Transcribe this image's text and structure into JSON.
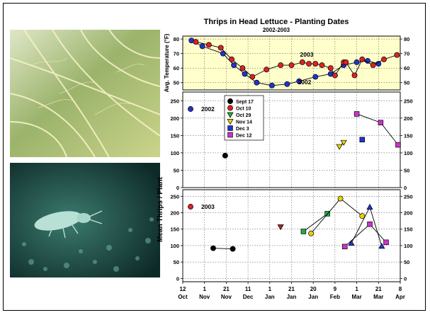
{
  "chart_data": {
    "type": "line",
    "title": "Thrips in Head Lettuce - Planting Dates",
    "subtitle": "2002-2003",
    "x_ticks": [
      {
        "day": "12",
        "month": "Oct",
        "pos": 0
      },
      {
        "day": "1",
        "month": "Nov",
        "pos": 20
      },
      {
        "day": "21",
        "month": "Nov",
        "pos": 40
      },
      {
        "day": "11",
        "month": "Dec",
        "pos": 60
      },
      {
        "day": "1",
        "month": "Jan",
        "pos": 80
      },
      {
        "day": "21",
        "month": "Jan",
        "pos": 100
      },
      {
        "day": "20",
        "month": "Jan",
        "pos": 120
      },
      {
        "day": "9",
        "month": "Feb",
        "pos": 140
      },
      {
        "day": "1",
        "month": "Mar",
        "pos": 160
      },
      {
        "day": "21",
        "month": "Mar",
        "pos": 180
      },
      {
        "day": "8",
        "month": "Apr",
        "pos": 200
      }
    ],
    "panels": [
      {
        "id": "temperature",
        "ylabel": "Avg. Temperature (°F)",
        "ylim": [
          45,
          82
        ],
        "yticks": [
          50,
          60,
          70,
          80
        ],
        "background": "#ffffcc",
        "series": [
          {
            "name": "2002",
            "color": "#2233cc",
            "x": [
              8,
              18,
              37,
              47,
              57,
              68,
              82,
              96,
              107,
              122,
              136,
              148,
              160,
              170,
              180
            ],
            "y": [
              79,
              75,
              70,
              62,
              56,
              50,
              48,
              49,
              51,
              54,
              56,
              62,
              64,
              65,
              63
            ]
          },
          {
            "name": "2003",
            "color": "#dd2222",
            "x": [
              12,
              24,
              35,
              45,
              55,
              64,
              77,
              90,
              100,
              110,
              116,
              122,
              128,
              136,
              140,
              148,
              150,
              158,
              165,
              175,
              185,
              197
            ],
            "y": [
              78,
              76,
              74,
              66,
              60,
              54,
              59,
              62,
              62,
              64,
              63,
              63,
              62,
              60,
              55,
              64,
              64,
              55,
              66,
              62,
              66,
              69
            ]
          }
        ],
        "labels": [
          {
            "text": "2003",
            "x": 114,
            "y": 68
          },
          {
            "text": "2002",
            "x": 112,
            "y": 49
          }
        ]
      },
      {
        "id": "thrips-2002",
        "ylim": [
          0,
          275
        ],
        "yticks": [
          0,
          50,
          100,
          150,
          200,
          250
        ],
        "label": "2002",
        "label_color": "#2233cc",
        "series": [
          {
            "name": "Sept 17",
            "color": "#000000",
            "marker": "circle",
            "x": [
              39
            ],
            "y": [
              92
            ]
          },
          {
            "name": "Oct 10",
            "color": "#dd2222",
            "marker": "circle",
            "x": [],
            "y": []
          },
          {
            "name": "Oct 29",
            "color": "#22aa44",
            "marker": "triangle-down",
            "x": [],
            "y": []
          },
          {
            "name": "Nov 14",
            "color": "#e6d200",
            "marker": "triangle-down",
            "x": [
              144,
              148
            ],
            "y": [
              118,
              130
            ]
          },
          {
            "name": "Dec 3",
            "color": "#2233cc",
            "marker": "square",
            "x": [
              165
            ],
            "y": [
              138
            ]
          },
          {
            "name": "Dec 12",
            "color": "#cc33cc",
            "marker": "square",
            "x": [
              160,
              182,
              198
            ],
            "y": [
              212,
              187,
              123
            ]
          }
        ]
      },
      {
        "id": "thrips-2003",
        "ylim": [
          -10,
          270
        ],
        "yticks": [
          0,
          50,
          100,
          150,
          200,
          250
        ],
        "label": "2003",
        "label_color": "#dd2222",
        "series": [
          {
            "name": "Sept 17",
            "color": "#000000",
            "marker": "circle",
            "x": [
              28,
              46
            ],
            "y": [
              92,
              90
            ]
          },
          {
            "name": "Oct 10",
            "color": "#dd2222",
            "marker": "circle",
            "x": [],
            "y": []
          },
          {
            "name": "Nov 14",
            "color": "#b22222",
            "marker": "triangle-down",
            "x": [
              90
            ],
            "y": [
              157
            ]
          },
          {
            "name": "Oct 29",
            "color": "#22aa44",
            "marker": "square",
            "x": [
              111,
              133
            ],
            "y": [
              143,
              197
            ]
          },
          {
            "name": "Nov 14",
            "color": "#e6d200",
            "marker": "circle",
            "x": [
              118,
              145,
              165
            ],
            "y": [
              137,
              243,
              190
            ]
          },
          {
            "name": "Dec 3",
            "color": "#2233cc",
            "marker": "triangle-up",
            "x": [
              155,
              172,
              183
            ],
            "y": [
              107,
              217,
              98
            ]
          },
          {
            "name": "Dec 12",
            "color": "#cc33cc",
            "marker": "square",
            "x": [
              149,
              172,
              187
            ],
            "y": [
              97,
              165,
              110
            ]
          }
        ]
      }
    ],
    "shared_ylabel": "Mean Thrips / Plant",
    "legend": [
      "Sept 17",
      "Oct 10",
      "Oct 29",
      "Nov 14",
      "Dec 3",
      "Dec 12"
    ],
    "legend_placement": "top-left of middle panel",
    "grid": true
  },
  "photos": {
    "top": "lettuce-leaves",
    "bottom": "thrips-insect"
  }
}
